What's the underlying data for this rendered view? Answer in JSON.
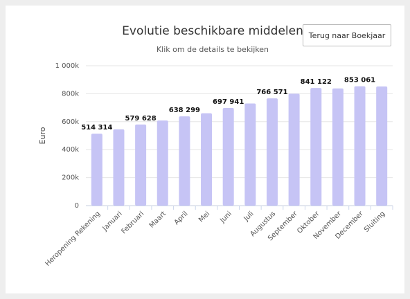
{
  "chart_data": {
    "type": "bar",
    "title": "Evolutie beschikbare middelen",
    "subtitle": "Klik om de details te bekijken",
    "y_label": "Euro",
    "categories": [
      "Heropening Rekening",
      "Januari",
      "Februari",
      "Maart",
      "April",
      "Mei",
      "Juni",
      "Juli",
      "Augustus",
      "September",
      "Oktober",
      "November",
      "December",
      "Sluiting"
    ],
    "values": [
      514314,
      545000,
      579628,
      608000,
      638299,
      660000,
      697941,
      730000,
      766571,
      800000,
      841122,
      838000,
      853061,
      852000
    ],
    "value_labels": [
      "514 314",
      null,
      "579 628",
      null,
      "638 299",
      null,
      "697 941",
      null,
      "766 571",
      null,
      "841 122",
      null,
      "853 061",
      null
    ],
    "color": "#c6c4f5",
    "ylim": [
      0,
      1000000
    ],
    "yticks": [
      0,
      {
        "value": 200000,
        "label": "200k"
      },
      {
        "value": 400000,
        "label": "400k"
      },
      {
        "value": 600000,
        "label": "600k"
      },
      {
        "value": 800000,
        "label": "800k"
      },
      {
        "value": 1000000,
        "label": "1 000k"
      }
    ],
    "grid": true
  },
  "back_button": "Terug naar Boekjaar"
}
